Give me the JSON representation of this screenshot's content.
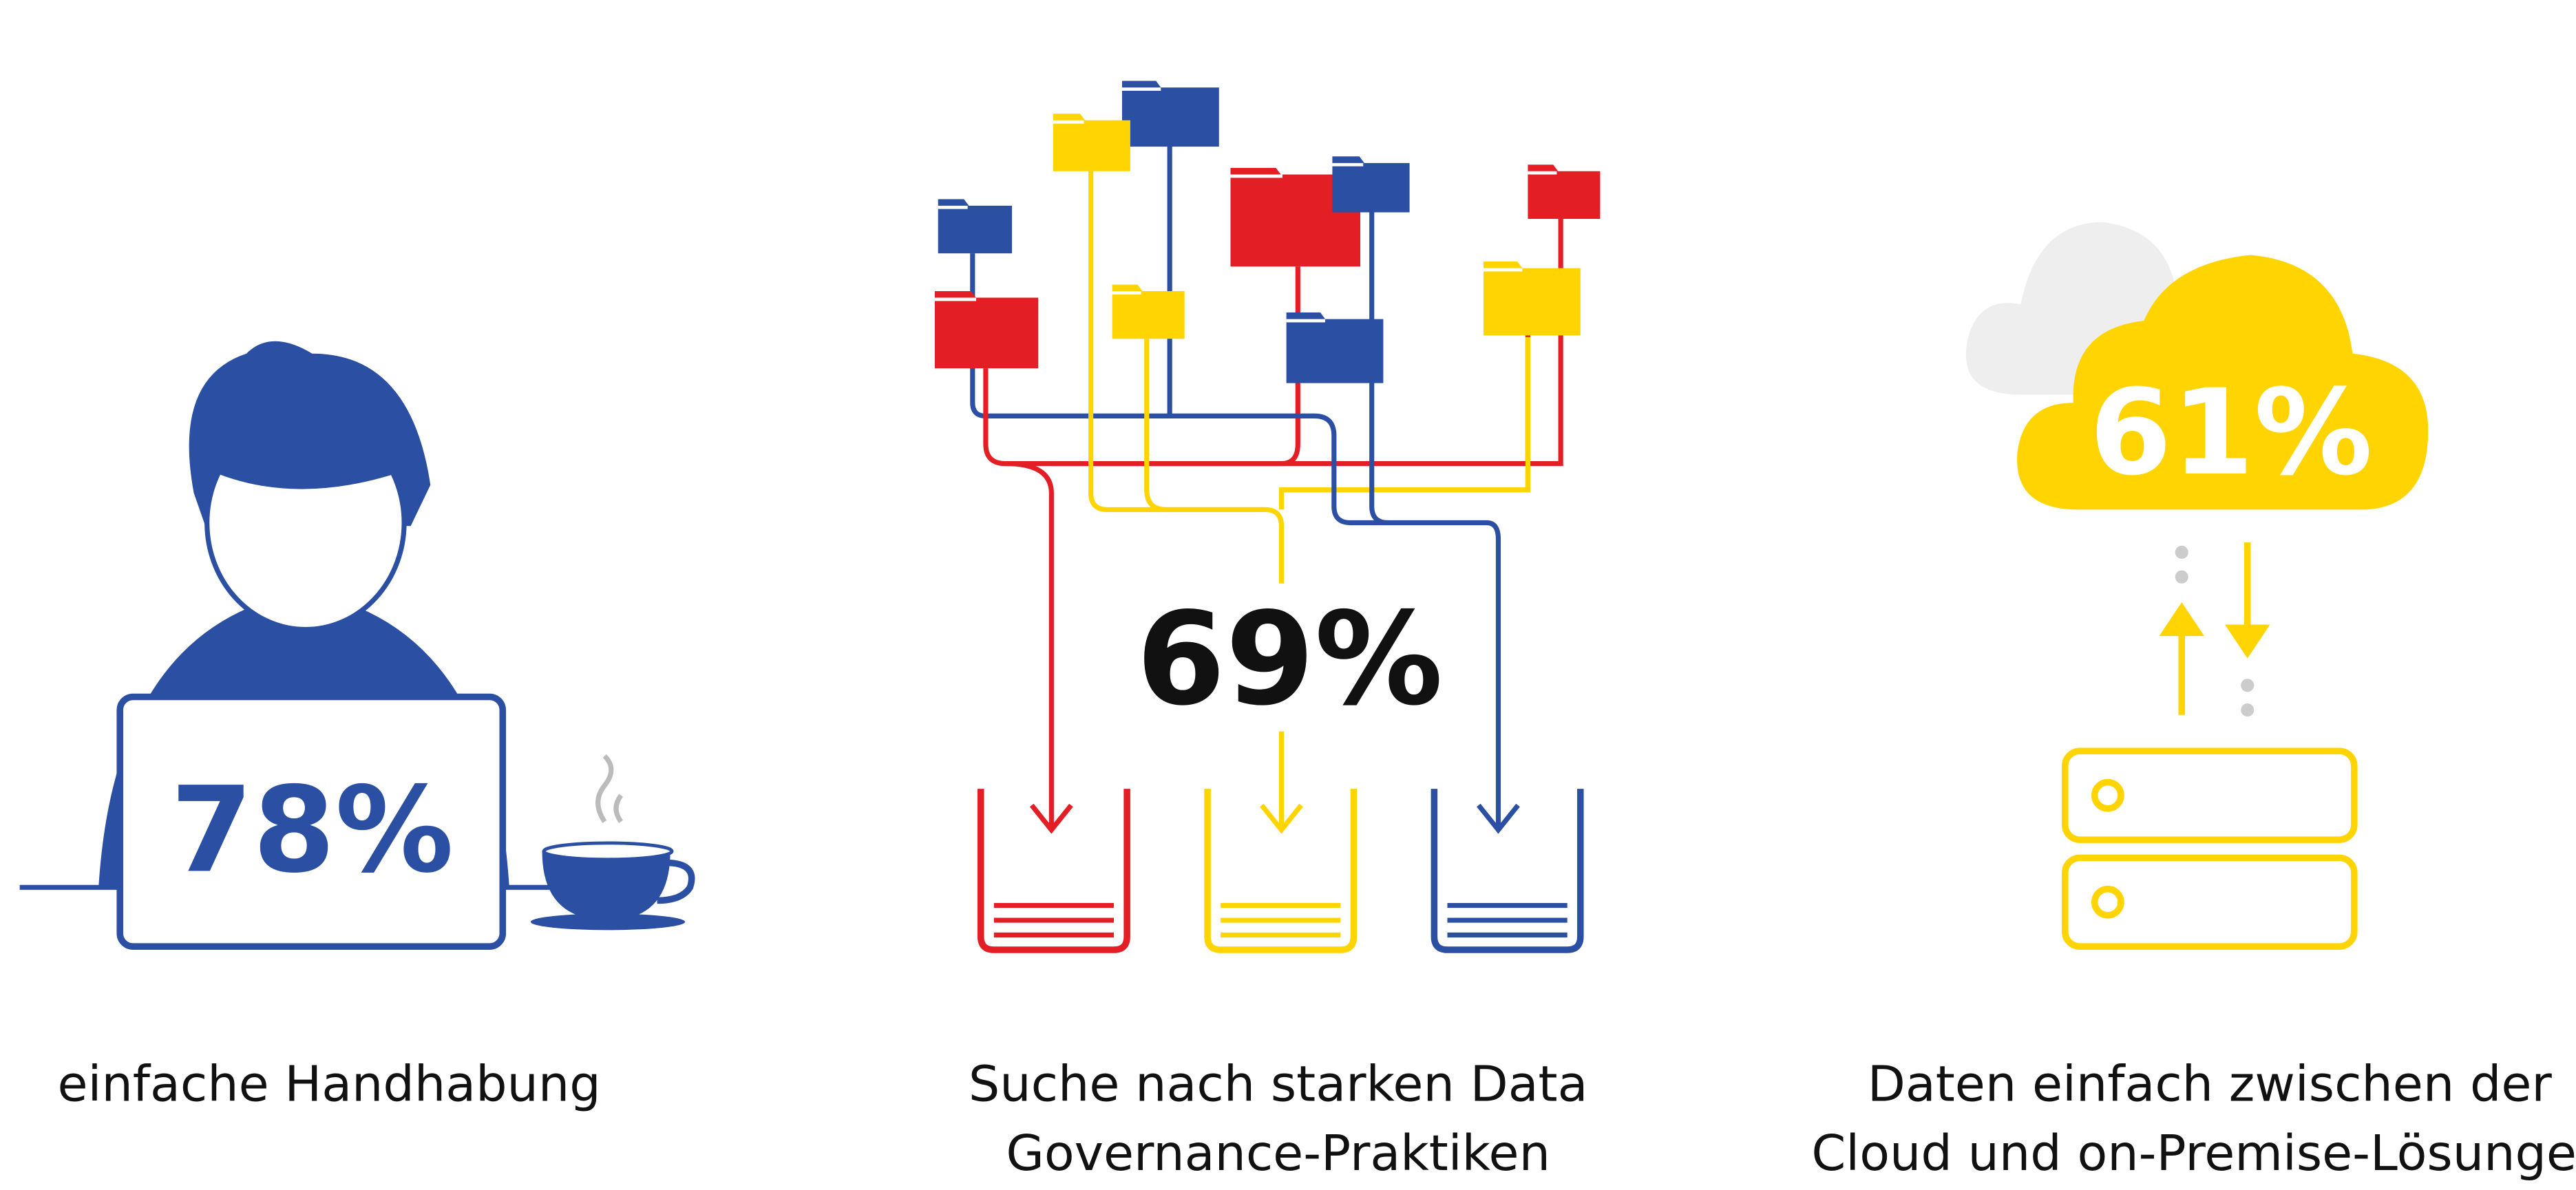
{
  "items": [
    {
      "value": "78%",
      "lines": [
        "einfache Handhabung"
      ]
    },
    {
      "value": "69%",
      "lines": [
        "Suche nach starken Data",
        "Governance-Praktiken"
      ]
    },
    {
      "value": "61%",
      "lines": [
        "Daten einfach zwischen der",
        "Cloud und on-Premise-Lösungen"
      ]
    }
  ]
}
